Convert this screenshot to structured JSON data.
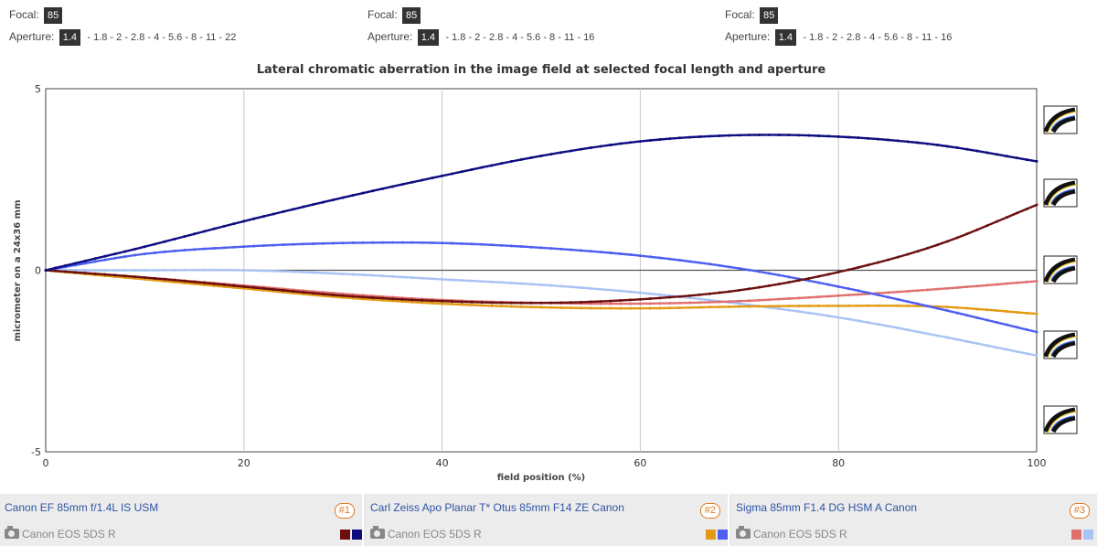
{
  "lenses": [
    {
      "focal_label": "Focal:",
      "focal_value": "85",
      "aperture_label": "Aperture:",
      "aperture_value": "1.4",
      "aperture_options": "- 1.8 - 2 - 2.8 - 4 - 5.6 - 8 - 11 - 22",
      "name": "Canon EF 85mm f/1.4L IS USM",
      "badge": "#1",
      "camera": "Canon EOS 5DS R",
      "colors": [
        "#6b0f0f",
        "#0d0d80"
      ]
    },
    {
      "focal_label": "Focal:",
      "focal_value": "85",
      "aperture_label": "Aperture:",
      "aperture_value": "1.4",
      "aperture_options": "- 1.8 - 2 - 2.8 - 4 - 5.6 - 8 - 11 - 16",
      "name": "Carl Zeiss Apo Planar T* Otus 85mm F14 ZE Canon",
      "badge": "#2",
      "camera": "Canon EOS 5DS R",
      "colors": [
        "#e39b13",
        "#4d5ef0"
      ]
    },
    {
      "focal_label": "Focal:",
      "focal_value": "85",
      "aperture_label": "Aperture:",
      "aperture_value": "1.4",
      "aperture_options": "- 1.8 - 2 - 2.8 - 4 - 5.6 - 8 - 11 - 16",
      "name": "Sigma 85mm F1.4 DG HSM A Canon",
      "badge": "#3",
      "camera": "Canon EOS 5DS R",
      "colors": [
        "#e07070",
        "#a9c3f5"
      ]
    }
  ],
  "chart_data": {
    "type": "line",
    "title": "Lateral chromatic aberration in the image field at selected focal length and aperture",
    "xlabel": "field position (%)",
    "ylabel": "micrometer on a 24x36 mm",
    "xlim": [
      0,
      100
    ],
    "ylim": [
      -5,
      5
    ],
    "xticks": [
      0,
      20,
      40,
      60,
      80,
      100
    ],
    "yticks": [
      -5,
      0,
      5
    ],
    "grid": "vertical",
    "x": [
      0,
      10,
      20,
      30,
      40,
      50,
      60,
      70,
      80,
      90,
      100
    ],
    "series": [
      {
        "color": "#0d0d80",
        "values": [
          0,
          0.65,
          1.35,
          2.0,
          2.6,
          3.15,
          3.55,
          3.72,
          3.68,
          3.45,
          3.0
        ]
      },
      {
        "color": "#6b0f0f",
        "values": [
          0,
          -0.2,
          -0.45,
          -0.7,
          -0.85,
          -0.9,
          -0.8,
          -0.55,
          -0.05,
          0.7,
          1.8
        ]
      },
      {
        "color": "#4d5ef0",
        "values": [
          0,
          0.45,
          0.65,
          0.75,
          0.75,
          0.62,
          0.4,
          0.05,
          -0.45,
          -1.05,
          -1.7
        ]
      },
      {
        "color": "#e39b13",
        "values": [
          0,
          -0.25,
          -0.5,
          -0.75,
          -0.92,
          -1.02,
          -1.05,
          -1.0,
          -0.98,
          -1.0,
          -1.2
        ]
      },
      {
        "color": "#e07070",
        "values": [
          0,
          -0.2,
          -0.42,
          -0.65,
          -0.82,
          -0.9,
          -0.92,
          -0.85,
          -0.7,
          -0.52,
          -0.3
        ]
      },
      {
        "color": "#a9c3f5",
        "values": [
          0,
          0.0,
          0.0,
          -0.1,
          -0.25,
          -0.4,
          -0.62,
          -0.92,
          -1.3,
          -1.8,
          -2.35
        ]
      }
    ]
  }
}
